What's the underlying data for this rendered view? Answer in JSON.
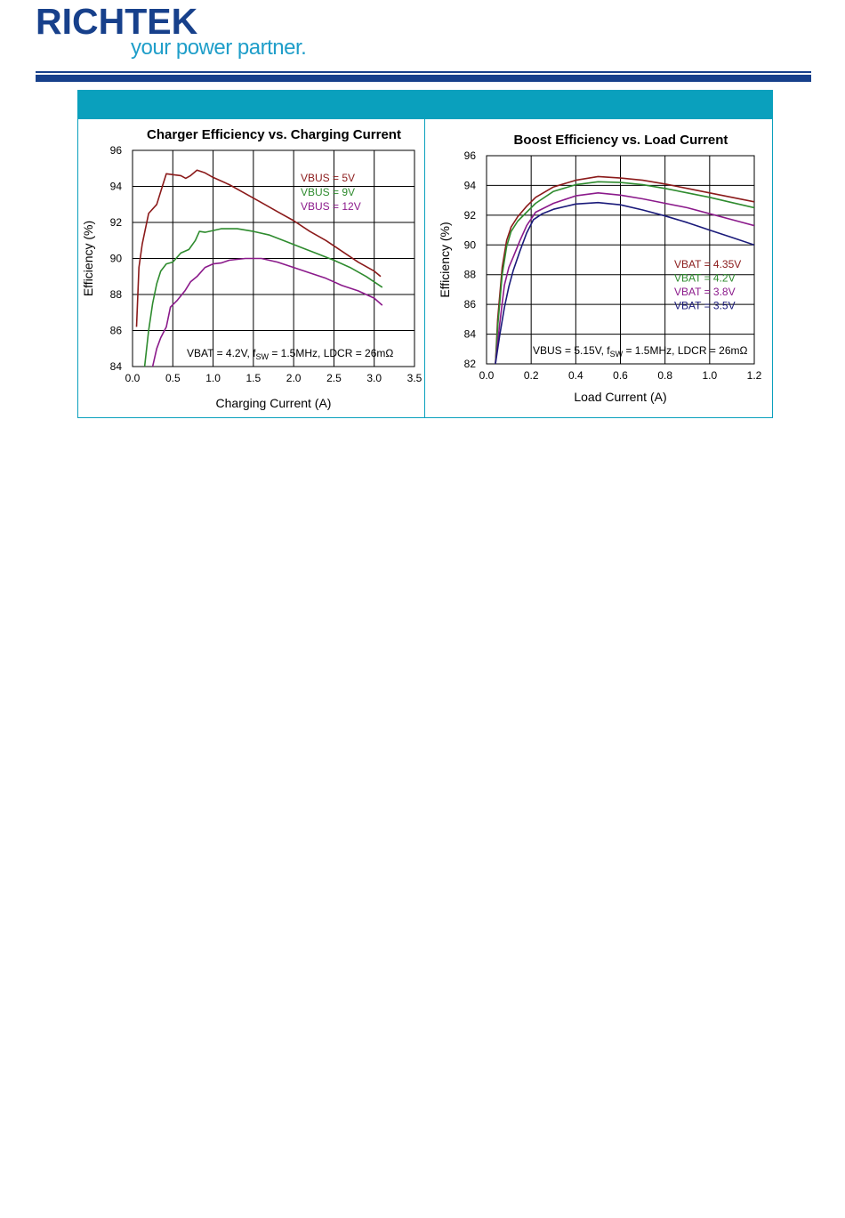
{
  "header": {
    "brand": "RICHTEK",
    "tagline": "your power partner."
  },
  "colors": {
    "brand_navy": "#17408b",
    "brand_cyan": "#1f9ec9",
    "panel_teal": "#0aa0bd"
  },
  "chart_data": [
    {
      "type": "line",
      "title": "Charger Efficiency vs. Charging Current",
      "xlabel": "Charging Current (A)",
      "ylabel": "Efficiency (%)",
      "xlim": [
        0,
        3.5
      ],
      "ylim": [
        84,
        96
      ],
      "xticks": [
        "0.0",
        "0.5",
        "1.0",
        "1.5",
        "2.0",
        "2.5",
        "3.0",
        "3.5"
      ],
      "yticks": [
        "84",
        "86",
        "88",
        "90",
        "92",
        "94",
        "96"
      ],
      "grid": true,
      "legend_placement": "top-right",
      "annotation": "VBAT = 4.2V, fSW = 1.5MHz, LDCR = 26mΩ",
      "series": [
        {
          "name": "VBUS = 5V",
          "color": "#8b1a1a",
          "points": [
            [
              0.05,
              86.2
            ],
            [
              0.08,
              89.5
            ],
            [
              0.12,
              90.8
            ],
            [
              0.2,
              92.5
            ],
            [
              0.3,
              93.0
            ],
            [
              0.37,
              94.0
            ],
            [
              0.42,
              94.7
            ],
            [
              0.5,
              94.65
            ],
            [
              0.6,
              94.6
            ],
            [
              0.66,
              94.45
            ],
            [
              0.72,
              94.6
            ],
            [
              0.8,
              94.9
            ],
            [
              0.9,
              94.75
            ],
            [
              1.0,
              94.5
            ],
            [
              1.2,
              94.1
            ],
            [
              1.4,
              93.6
            ],
            [
              1.6,
              93.1
            ],
            [
              1.8,
              92.6
            ],
            [
              2.0,
              92.1
            ],
            [
              2.2,
              91.5
            ],
            [
              2.4,
              91.0
            ],
            [
              2.6,
              90.4
            ],
            [
              2.8,
              89.8
            ],
            [
              3.0,
              89.3
            ],
            [
              3.08,
              89.0
            ]
          ]
        },
        {
          "name": "VBUS = 9V",
          "color": "#2e8b2e",
          "points": [
            [
              0.15,
              84.0
            ],
            [
              0.2,
              86.0
            ],
            [
              0.25,
              87.5
            ],
            [
              0.3,
              88.6
            ],
            [
              0.35,
              89.3
            ],
            [
              0.42,
              89.7
            ],
            [
              0.5,
              89.8
            ],
            [
              0.6,
              90.3
            ],
            [
              0.7,
              90.5
            ],
            [
              0.78,
              91.0
            ],
            [
              0.83,
              91.5
            ],
            [
              0.9,
              91.45
            ],
            [
              1.0,
              91.55
            ],
            [
              1.1,
              91.65
            ],
            [
              1.3,
              91.65
            ],
            [
              1.5,
              91.5
            ],
            [
              1.7,
              91.3
            ],
            [
              1.9,
              90.95
            ],
            [
              2.1,
              90.6
            ],
            [
              2.3,
              90.25
            ],
            [
              2.5,
              89.9
            ],
            [
              2.7,
              89.5
            ],
            [
              2.9,
              89.0
            ],
            [
              3.1,
              88.4
            ]
          ]
        },
        {
          "name": "VBUS = 12V",
          "color": "#8b1a8b",
          "points": [
            [
              0.25,
              84.0
            ],
            [
              0.3,
              85.0
            ],
            [
              0.35,
              85.6
            ],
            [
              0.42,
              86.2
            ],
            [
              0.47,
              87.3
            ],
            [
              0.55,
              87.65
            ],
            [
              0.65,
              88.2
            ],
            [
              0.72,
              88.7
            ],
            [
              0.8,
              89.0
            ],
            [
              0.9,
              89.5
            ],
            [
              1.0,
              89.7
            ],
            [
              1.1,
              89.75
            ],
            [
              1.2,
              89.9
            ],
            [
              1.4,
              90.0
            ],
            [
              1.6,
              90.0
            ],
            [
              1.8,
              89.8
            ],
            [
              2.0,
              89.5
            ],
            [
              2.2,
              89.2
            ],
            [
              2.4,
              88.9
            ],
            [
              2.6,
              88.5
            ],
            [
              2.8,
              88.2
            ],
            [
              3.0,
              87.8
            ],
            [
              3.1,
              87.4
            ]
          ]
        }
      ]
    },
    {
      "type": "line",
      "title": "Boost Efficiency vs. Load Current",
      "xlabel": "Load Current (A)",
      "ylabel": "Efficiency (%)",
      "xlim": [
        0,
        1.2
      ],
      "ylim": [
        82,
        96
      ],
      "xticks": [
        "0.0",
        "0.2",
        "0.4",
        "0.6",
        "0.8",
        "1.0",
        "1.2"
      ],
      "yticks": [
        "82",
        "84",
        "86",
        "88",
        "90",
        "92",
        "94",
        "96"
      ],
      "grid": true,
      "legend_placement": "middle-right",
      "annotation": "VBUS = 5.15V, fSW = 1.5MHz, LDCR = 26mΩ",
      "series": [
        {
          "name": "VBAT = 4.35V",
          "color": "#8b1a1a",
          "points": [
            [
              0.04,
              82.0
            ],
            [
              0.05,
              85.0
            ],
            [
              0.07,
              88.5
            ],
            [
              0.09,
              90.3
            ],
            [
              0.11,
              91.2
            ],
            [
              0.14,
              91.9
            ],
            [
              0.18,
              92.6
            ],
            [
              0.22,
              93.2
            ],
            [
              0.3,
              93.9
            ],
            [
              0.4,
              94.35
            ],
            [
              0.5,
              94.6
            ],
            [
              0.6,
              94.5
            ],
            [
              0.7,
              94.35
            ],
            [
              0.8,
              94.1
            ],
            [
              0.9,
              93.8
            ],
            [
              1.0,
              93.5
            ],
            [
              1.1,
              93.2
            ],
            [
              1.2,
              92.9
            ]
          ]
        },
        {
          "name": "VBAT = 4.2V",
          "color": "#2e8b2e",
          "points": [
            [
              0.04,
              82.0
            ],
            [
              0.05,
              84.5
            ],
            [
              0.07,
              88.0
            ],
            [
              0.09,
              89.9
            ],
            [
              0.11,
              90.9
            ],
            [
              0.14,
              91.6
            ],
            [
              0.18,
              92.2
            ],
            [
              0.22,
              92.8
            ],
            [
              0.3,
              93.6
            ],
            [
              0.4,
              94.05
            ],
            [
              0.5,
              94.25
            ],
            [
              0.6,
              94.2
            ],
            [
              0.7,
              94.05
            ],
            [
              0.8,
              93.8
            ],
            [
              0.9,
              93.5
            ],
            [
              1.0,
              93.2
            ],
            [
              1.1,
              92.85
            ],
            [
              1.2,
              92.5
            ]
          ]
        },
        {
          "name": "VBAT = 3.8V",
          "color": "#8b1a8b",
          "points": [
            [
              0.04,
              82.0
            ],
            [
              0.06,
              84.8
            ],
            [
              0.08,
              87.3
            ],
            [
              0.1,
              88.5
            ],
            [
              0.12,
              89.2
            ],
            [
              0.15,
              90.3
            ],
            [
              0.18,
              91.3
            ],
            [
              0.22,
              92.2
            ],
            [
              0.3,
              92.8
            ],
            [
              0.4,
              93.3
            ],
            [
              0.5,
              93.5
            ],
            [
              0.6,
              93.35
            ],
            [
              0.7,
              93.1
            ],
            [
              0.8,
              92.8
            ],
            [
              0.9,
              92.5
            ],
            [
              1.0,
              92.1
            ],
            [
              1.1,
              91.7
            ],
            [
              1.2,
              91.3
            ]
          ]
        },
        {
          "name": "VBAT = 3.5V",
          "color": "#1a1a7a",
          "points": [
            [
              0.04,
              82.0
            ],
            [
              0.06,
              84.0
            ],
            [
              0.08,
              85.8
            ],
            [
              0.1,
              87.2
            ],
            [
              0.12,
              88.3
            ],
            [
              0.15,
              89.6
            ],
            [
              0.18,
              90.8
            ],
            [
              0.21,
              91.7
            ],
            [
              0.25,
              92.1
            ],
            [
              0.3,
              92.4
            ],
            [
              0.4,
              92.75
            ],
            [
              0.5,
              92.85
            ],
            [
              0.6,
              92.7
            ],
            [
              0.7,
              92.35
            ],
            [
              0.8,
              91.95
            ],
            [
              0.9,
              91.5
            ],
            [
              1.0,
              91.0
            ],
            [
              1.1,
              90.5
            ],
            [
              1.2,
              90.0
            ]
          ]
        }
      ]
    }
  ]
}
